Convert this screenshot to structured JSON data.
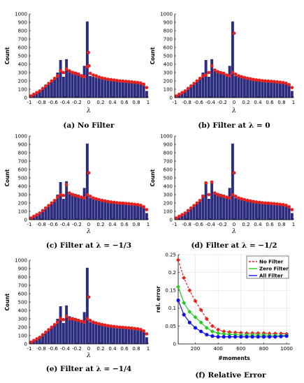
{
  "chart_data": [
    {
      "type": "bar",
      "caption": "(a) No Filter",
      "ylabel": "Count",
      "xlabel": "λ",
      "xlim": [
        -1,
        1
      ],
      "ylim": [
        0,
        1000
      ],
      "xticks": [
        "-1",
        "-0.8",
        "-0.6",
        "-0.4",
        "-0.2",
        "0",
        "0.2",
        "0.4",
        "0.6",
        "0.8",
        "1"
      ],
      "yticks": [
        "0",
        "100",
        "200",
        "300",
        "400",
        "500",
        "600",
        "700",
        "800",
        "900",
        "1000"
      ],
      "bar_color": "#2c2c7e",
      "marker_color": "#e8201c",
      "bars": {
        "x": [
          -0.975,
          -0.925,
          -0.875,
          -0.825,
          -0.775,
          -0.725,
          -0.675,
          -0.625,
          -0.575,
          -0.525,
          -0.475,
          -0.425,
          -0.375,
          -0.325,
          -0.275,
          -0.225,
          -0.175,
          -0.125,
          -0.075,
          -0.025,
          0.025,
          0.075,
          0.125,
          0.175,
          0.225,
          0.275,
          0.325,
          0.375,
          0.425,
          0.475,
          0.525,
          0.575,
          0.625,
          0.675,
          0.725,
          0.775,
          0.825,
          0.875,
          0.925,
          0.975
        ],
        "y": [
          20,
          40,
          60,
          80,
          110,
          140,
          170,
          200,
          230,
          300,
          450,
          250,
          460,
          330,
          320,
          310,
          300,
          280,
          380,
          910,
          260,
          250,
          240,
          230,
          225,
          220,
          215,
          210,
          205,
          200,
          200,
          195,
          195,
          190,
          185,
          180,
          175,
          170,
          150,
          80
        ]
      },
      "markers": {
        "x": [
          -0.975,
          -0.925,
          -0.875,
          -0.825,
          -0.775,
          -0.725,
          -0.675,
          -0.625,
          -0.575,
          -0.525,
          -0.475,
          -0.425,
          -0.375,
          -0.325,
          -0.275,
          -0.225,
          -0.175,
          -0.125,
          -0.075,
          -0.025,
          -0.005,
          0.005,
          0.025,
          0.075,
          0.125,
          0.175,
          0.225,
          0.275,
          0.325,
          0.375,
          0.425,
          0.475,
          0.525,
          0.575,
          0.625,
          0.675,
          0.725,
          0.775,
          0.825,
          0.875,
          0.925,
          0.975
        ],
        "y": [
          20,
          40,
          60,
          80,
          110,
          140,
          170,
          200,
          230,
          260,
          320,
          300,
          340,
          320,
          300,
          290,
          280,
          260,
          250,
          370,
          540,
          380,
          290,
          270,
          260,
          245,
          235,
          228,
          220,
          215,
          210,
          205,
          200,
          198,
          195,
          192,
          188,
          184,
          180,
          175,
          160,
          120
        ]
      }
    },
    {
      "type": "bar",
      "caption": "(b) Filter at λ = 0",
      "ylabel": "Count",
      "xlabel": "λ",
      "xlim": [
        -1,
        1
      ],
      "ylim": [
        0,
        1000
      ],
      "xticks": [
        "-1",
        "-0.8",
        "-0.6",
        "-0.4",
        "-0.2",
        "0",
        "0.2",
        "0.4",
        "0.6",
        "0.8",
        "1"
      ],
      "yticks": [
        "0",
        "100",
        "200",
        "300",
        "400",
        "500",
        "600",
        "700",
        "800",
        "900",
        "1000"
      ],
      "bar_color": "#2c2c7e",
      "marker_color": "#e8201c",
      "bars": {
        "x": [
          -0.975,
          -0.925,
          -0.875,
          -0.825,
          -0.775,
          -0.725,
          -0.675,
          -0.625,
          -0.575,
          -0.525,
          -0.475,
          -0.425,
          -0.375,
          -0.325,
          -0.275,
          -0.225,
          -0.175,
          -0.125,
          -0.075,
          -0.025,
          0.025,
          0.075,
          0.125,
          0.175,
          0.225,
          0.275,
          0.325,
          0.375,
          0.425,
          0.475,
          0.525,
          0.575,
          0.625,
          0.675,
          0.725,
          0.775,
          0.825,
          0.875,
          0.925,
          0.975
        ],
        "y": [
          20,
          40,
          60,
          80,
          110,
          140,
          170,
          200,
          230,
          300,
          450,
          250,
          460,
          330,
          320,
          310,
          300,
          280,
          380,
          910,
          260,
          250,
          240,
          230,
          225,
          220,
          215,
          210,
          205,
          200,
          200,
          195,
          195,
          190,
          185,
          180,
          175,
          170,
          150,
          80
        ]
      },
      "markers": {
        "x": [
          -0.975,
          -0.925,
          -0.875,
          -0.825,
          -0.775,
          -0.725,
          -0.675,
          -0.625,
          -0.575,
          -0.525,
          -0.475,
          -0.425,
          -0.375,
          -0.325,
          -0.275,
          -0.225,
          -0.175,
          -0.125,
          -0.075,
          -0.025,
          0.0,
          0.025,
          0.075,
          0.125,
          0.175,
          0.225,
          0.275,
          0.325,
          0.375,
          0.425,
          0.475,
          0.525,
          0.575,
          0.625,
          0.675,
          0.725,
          0.775,
          0.825,
          0.875,
          0.925,
          0.975
        ],
        "y": [
          20,
          40,
          60,
          80,
          110,
          140,
          170,
          200,
          230,
          260,
          270,
          300,
          380,
          330,
          310,
          300,
          290,
          270,
          260,
          300,
          770,
          280,
          260,
          250,
          240,
          232,
          225,
          218,
          212,
          208,
          203,
          200,
          198,
          195,
          192,
          188,
          184,
          180,
          172,
          155,
          120
        ]
      }
    },
    {
      "type": "bar",
      "caption": "(c) Filter at λ = −1/3",
      "ylabel": "Count",
      "xlabel": "λ",
      "xlim": [
        -1,
        1
      ],
      "ylim": [
        0,
        1000
      ],
      "xticks": [
        "-1",
        "-0.8",
        "-0.6",
        "-0.4",
        "-0.2",
        "0",
        "0.2",
        "0.4",
        "0.6",
        "0.8",
        "1"
      ],
      "yticks": [
        "0",
        "100",
        "200",
        "300",
        "400",
        "500",
        "600",
        "700",
        "800",
        "900",
        "1000"
      ],
      "bar_color": "#2c2c7e",
      "marker_color": "#e8201c",
      "bars": {
        "x": [
          -0.975,
          -0.925,
          -0.875,
          -0.825,
          -0.775,
          -0.725,
          -0.675,
          -0.625,
          -0.575,
          -0.525,
          -0.475,
          -0.425,
          -0.375,
          -0.325,
          -0.275,
          -0.225,
          -0.175,
          -0.125,
          -0.075,
          -0.025,
          0.025,
          0.075,
          0.125,
          0.175,
          0.225,
          0.275,
          0.325,
          0.375,
          0.425,
          0.475,
          0.525,
          0.575,
          0.625,
          0.675,
          0.725,
          0.775,
          0.825,
          0.875,
          0.925,
          0.975
        ],
        "y": [
          20,
          40,
          60,
          80,
          110,
          140,
          170,
          200,
          230,
          300,
          450,
          250,
          460,
          330,
          320,
          310,
          300,
          280,
          380,
          910,
          260,
          250,
          240,
          230,
          225,
          220,
          215,
          210,
          205,
          200,
          200,
          195,
          195,
          190,
          185,
          180,
          175,
          170,
          150,
          80
        ]
      },
      "markers": {
        "x": [
          -0.975,
          -0.925,
          -0.875,
          -0.825,
          -0.775,
          -0.725,
          -0.675,
          -0.625,
          -0.575,
          -0.525,
          -0.475,
          -0.425,
          -0.375,
          -0.325,
          -0.275,
          -0.225,
          -0.175,
          -0.125,
          -0.075,
          -0.025,
          0.0,
          0.025,
          0.075,
          0.125,
          0.175,
          0.225,
          0.275,
          0.325,
          0.375,
          0.425,
          0.475,
          0.525,
          0.575,
          0.625,
          0.675,
          0.725,
          0.775,
          0.825,
          0.875,
          0.925,
          0.975
        ],
        "y": [
          20,
          40,
          60,
          80,
          110,
          140,
          170,
          200,
          230,
          270,
          300,
          290,
          420,
          320,
          300,
          290,
          280,
          270,
          260,
          300,
          560,
          280,
          260,
          250,
          240,
          232,
          225,
          218,
          212,
          208,
          203,
          200,
          198,
          195,
          192,
          188,
          184,
          180,
          172,
          155,
          120
        ]
      }
    },
    {
      "type": "bar",
      "caption": "(d) Filter at λ = −1/2",
      "ylabel": "Count",
      "xlabel": "λ",
      "xlim": [
        -1,
        1
      ],
      "ylim": [
        0,
        1000
      ],
      "xticks": [
        "-1",
        "-0.8",
        "-0.6",
        "-0.4",
        "-0.2",
        "0",
        "0.2",
        "0.4",
        "0.6",
        "0.8",
        "1"
      ],
      "yticks": [
        "0",
        "100",
        "200",
        "300",
        "400",
        "500",
        "600",
        "700",
        "800",
        "900",
        "1000"
      ],
      "bar_color": "#2c2c7e",
      "marker_color": "#e8201c",
      "bars": {
        "x": [
          -0.975,
          -0.925,
          -0.875,
          -0.825,
          -0.775,
          -0.725,
          -0.675,
          -0.625,
          -0.575,
          -0.525,
          -0.475,
          -0.425,
          -0.375,
          -0.325,
          -0.275,
          -0.225,
          -0.175,
          -0.125,
          -0.075,
          -0.025,
          0.025,
          0.075,
          0.125,
          0.175,
          0.225,
          0.275,
          0.325,
          0.375,
          0.425,
          0.475,
          0.525,
          0.575,
          0.625,
          0.675,
          0.725,
          0.775,
          0.825,
          0.875,
          0.925,
          0.975
        ],
        "y": [
          20,
          40,
          60,
          80,
          110,
          140,
          170,
          200,
          230,
          300,
          450,
          250,
          460,
          330,
          320,
          310,
          300,
          280,
          380,
          910,
          260,
          250,
          240,
          230,
          225,
          220,
          215,
          210,
          205,
          200,
          200,
          195,
          195,
          190,
          185,
          180,
          175,
          170,
          150,
          80
        ]
      },
      "markers": {
        "x": [
          -0.975,
          -0.925,
          -0.875,
          -0.825,
          -0.775,
          -0.725,
          -0.675,
          -0.625,
          -0.575,
          -0.525,
          -0.475,
          -0.425,
          -0.375,
          -0.325,
          -0.275,
          -0.225,
          -0.175,
          -0.125,
          -0.075,
          -0.025,
          0.0,
          0.025,
          0.075,
          0.125,
          0.175,
          0.225,
          0.275,
          0.325,
          0.375,
          0.425,
          0.475,
          0.525,
          0.575,
          0.625,
          0.675,
          0.725,
          0.775,
          0.825,
          0.875,
          0.925,
          0.975
        ],
        "y": [
          20,
          40,
          60,
          80,
          110,
          140,
          170,
          200,
          230,
          280,
          440,
          300,
          450,
          320,
          300,
          290,
          280,
          270,
          260,
          300,
          560,
          280,
          260,
          250,
          240,
          232,
          225,
          218,
          212,
          208,
          203,
          200,
          198,
          195,
          192,
          188,
          184,
          180,
          172,
          155,
          120
        ]
      }
    },
    {
      "type": "bar",
      "caption": "(e) Filter at λ = −1/4",
      "ylabel": "Count",
      "xlabel": "λ",
      "xlim": [
        -1,
        1
      ],
      "ylim": [
        0,
        1000
      ],
      "xticks": [
        "-1",
        "-0.8",
        "-0.6",
        "-0.4",
        "-0.2",
        "0",
        "0.2",
        "0.4",
        "0.6",
        "0.8",
        "1"
      ],
      "yticks": [
        "0",
        "100",
        "200",
        "300",
        "400",
        "500",
        "600",
        "700",
        "800",
        "900",
        "1000"
      ],
      "bar_color": "#2c2c7e",
      "marker_color": "#e8201c",
      "bars": {
        "x": [
          -0.975,
          -0.925,
          -0.875,
          -0.825,
          -0.775,
          -0.725,
          -0.675,
          -0.625,
          -0.575,
          -0.525,
          -0.475,
          -0.425,
          -0.375,
          -0.325,
          -0.275,
          -0.225,
          -0.175,
          -0.125,
          -0.075,
          -0.025,
          0.025,
          0.075,
          0.125,
          0.175,
          0.225,
          0.275,
          0.325,
          0.375,
          0.425,
          0.475,
          0.525,
          0.575,
          0.625,
          0.675,
          0.725,
          0.775,
          0.825,
          0.875,
          0.925,
          0.975
        ],
        "y": [
          20,
          40,
          60,
          80,
          110,
          140,
          170,
          200,
          230,
          300,
          450,
          250,
          460,
          330,
          320,
          310,
          300,
          280,
          380,
          910,
          260,
          250,
          240,
          230,
          225,
          220,
          215,
          210,
          205,
          200,
          200,
          195,
          195,
          190,
          185,
          180,
          175,
          170,
          150,
          80
        ]
      },
      "markers": {
        "x": [
          -0.975,
          -0.925,
          -0.875,
          -0.825,
          -0.775,
          -0.725,
          -0.675,
          -0.625,
          -0.575,
          -0.525,
          -0.475,
          -0.425,
          -0.375,
          -0.325,
          -0.275,
          -0.225,
          -0.175,
          -0.125,
          -0.075,
          -0.025,
          0.0,
          0.025,
          0.075,
          0.125,
          0.175,
          0.225,
          0.275,
          0.325,
          0.375,
          0.425,
          0.475,
          0.525,
          0.575,
          0.625,
          0.675,
          0.725,
          0.775,
          0.825,
          0.875,
          0.925,
          0.975
        ],
        "y": [
          20,
          40,
          60,
          80,
          110,
          140,
          170,
          200,
          230,
          260,
          300,
          290,
          330,
          300,
          300,
          290,
          280,
          270,
          260,
          300,
          560,
          280,
          260,
          250,
          240,
          232,
          225,
          218,
          212,
          208,
          203,
          200,
          198,
          195,
          192,
          188,
          184,
          180,
          172,
          155,
          120
        ]
      }
    },
    {
      "type": "line",
      "caption": "(f) Relative Error",
      "ylabel": "rel. error",
      "xlabel": "#moments",
      "xlim": [
        50,
        1030
      ],
      "ylim": [
        0,
        0.25
      ],
      "xticks": [
        "200",
        "400",
        "600",
        "800",
        "1000"
      ],
      "xtick_values": [
        200,
        400,
        600,
        800,
        1000
      ],
      "yticks": [
        "0",
        "0.05",
        "0.1",
        "0.15",
        "0.2",
        "0.25"
      ],
      "ytick_values": [
        0,
        0.05,
        0.1,
        0.15,
        0.2,
        0.25
      ],
      "legend_position": "top-right",
      "x": [
        50,
        100,
        150,
        200,
        250,
        300,
        350,
        400,
        450,
        500,
        550,
        600,
        650,
        700,
        750,
        800,
        850,
        900,
        950,
        1000
      ],
      "series": [
        {
          "name": "No Filter",
          "color": "#e8201c",
          "marker": "diamond",
          "dash": "dashed",
          "values": [
            0.235,
            0.185,
            0.15,
            0.12,
            0.095,
            0.07,
            0.05,
            0.04,
            0.035,
            0.033,
            0.032,
            0.031,
            0.03,
            0.03,
            0.03,
            0.03,
            0.029,
            0.029,
            0.029,
            0.028
          ]
        },
        {
          "name": "Zero Filter",
          "color": "#22cc22",
          "marker": "diamond",
          "dash": "solid",
          "values": [
            0.16,
            0.115,
            0.09,
            0.075,
            0.06,
            0.045,
            0.035,
            0.03,
            0.028,
            0.027,
            0.026,
            0.025,
            0.025,
            0.025,
            0.025,
            0.025,
            0.024,
            0.024,
            0.024,
            0.024
          ]
        },
        {
          "name": "All Filter",
          "color": "#1111ee",
          "marker": "circle",
          "dash": "solid",
          "values": [
            0.122,
            0.082,
            0.06,
            0.045,
            0.035,
            0.026,
            0.022,
            0.02,
            0.02,
            0.02,
            0.02,
            0.02,
            0.02,
            0.02,
            0.02,
            0.02,
            0.02,
            0.02,
            0.021,
            0.022
          ]
        }
      ]
    }
  ]
}
